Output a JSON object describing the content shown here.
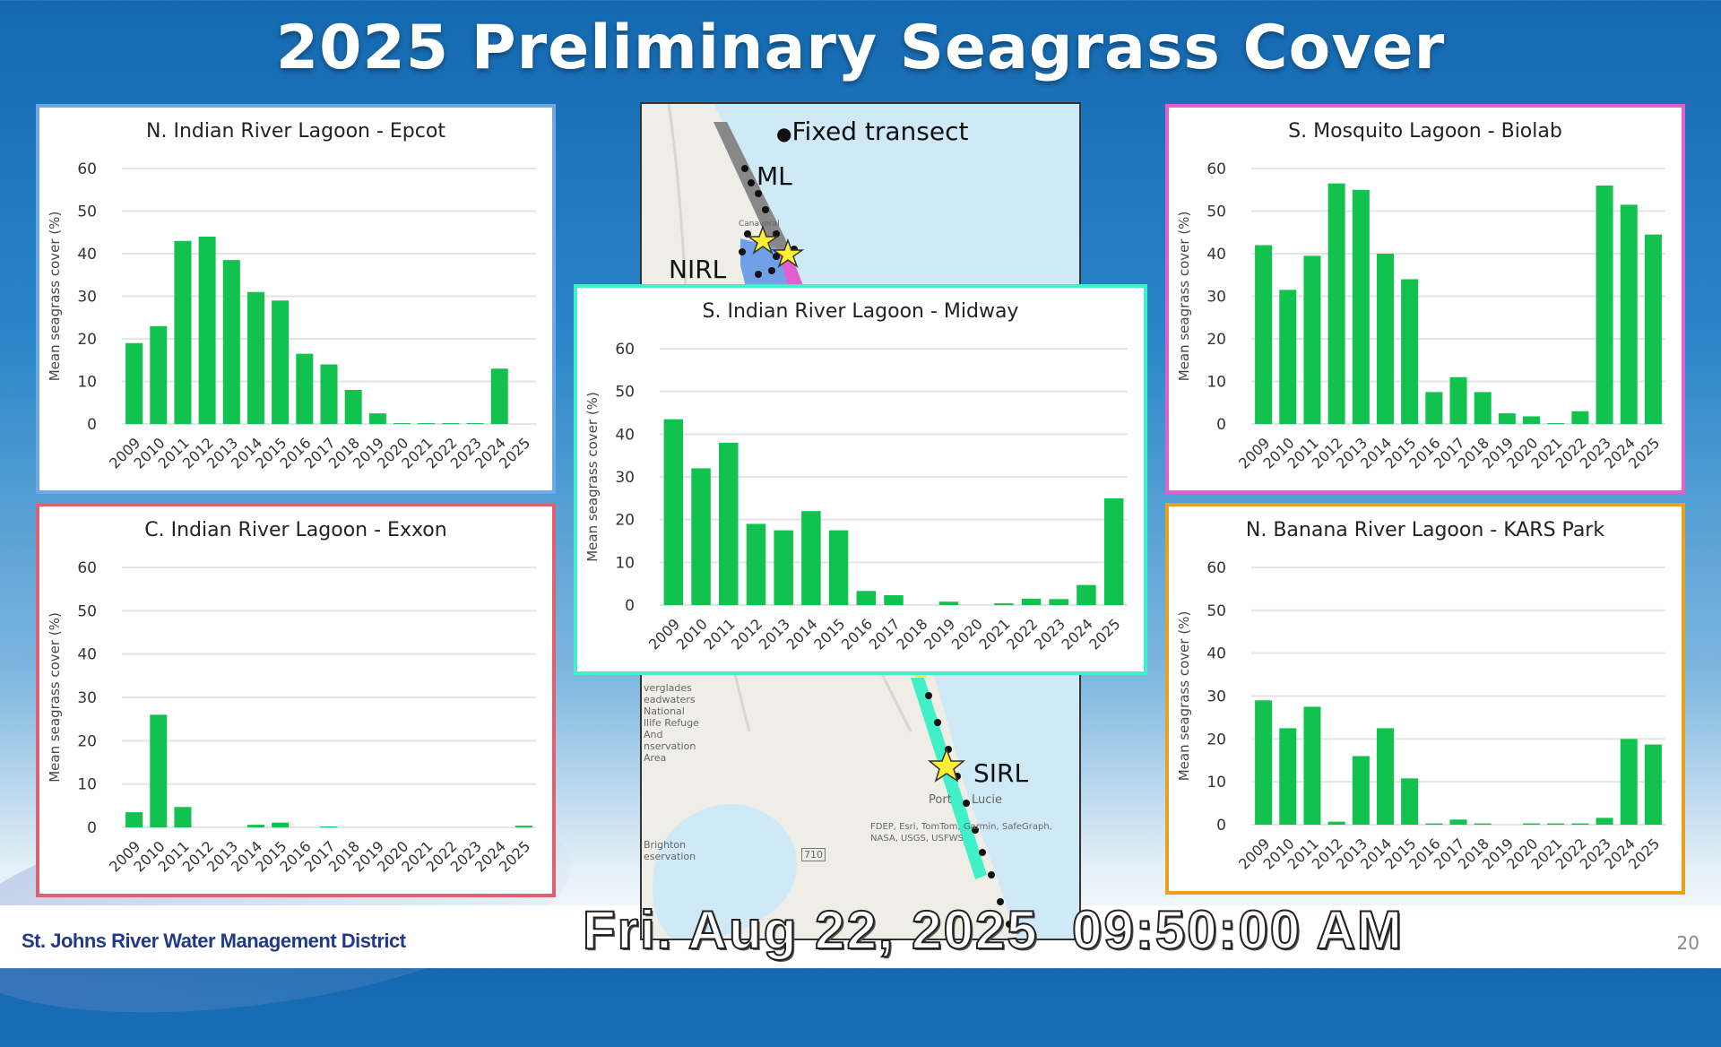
{
  "slide": {
    "title": "2025 Preliminary Seagrass Cover",
    "footer": "St. Johns River Water Management District",
    "page_number": "20",
    "timestamp": "Fri. Aug 22, 2025  09:50:00 AM"
  },
  "map": {
    "legend": "Fixed transect",
    "region_labels": {
      "ml": "ML",
      "nirl": "NIRL",
      "sirl": "SIRL"
    },
    "place_labels": {
      "port": "Port",
      "lucie": "Lucie",
      "refuge": "verglades\neadwaters\nNational\nllife Refuge\nAnd\nnservation\nArea",
      "brighton": "Brighton\neservation",
      "road": "710",
      "canaveral": "Canaveral"
    },
    "attribution": "FDEP, Esri, TomTom, Garmin, SafeGraph, NASA, USGS, USFWS",
    "colors": {
      "ocean": "#cfe9f7",
      "land": "#eeeee6",
      "ml": "#e060d0",
      "nirl": "#6fa0e8",
      "sirl": "#40f0c8",
      "star": "#ffee33"
    }
  },
  "chart_data": [
    {
      "type": "bar",
      "title": "N. Indian River Lagoon - Epcot",
      "ylabel": "Mean seagrass cover (%)",
      "categories": [
        "2009",
        "2010",
        "2011",
        "2012",
        "2013",
        "2014",
        "2015",
        "2016",
        "2017",
        "2018",
        "2019",
        "2020",
        "2021",
        "2022",
        "2023",
        "2024",
        "2025"
      ],
      "values": [
        19,
        23,
        43,
        44,
        38.5,
        31,
        29,
        16.5,
        14,
        8,
        2.5,
        0.2,
        0.2,
        0.2,
        0.2,
        13,
        null
      ],
      "ylim": [
        0,
        60
      ],
      "yticks": [
        "0",
        "10",
        "20",
        "30",
        "40",
        "50",
        "60"
      ],
      "grid": true,
      "bar_color": "#12c24e",
      "border_color": "#6fa8e8"
    },
    {
      "type": "bar",
      "title": "S. Mosquito Lagoon - Biolab",
      "ylabel": "Mean seagrass cover (%)",
      "categories": [
        "2009",
        "2010",
        "2011",
        "2012",
        "2013",
        "2014",
        "2015",
        "2016",
        "2017",
        "2018",
        "2019",
        "2020",
        "2021",
        "2022",
        "2023",
        "2024",
        "2025"
      ],
      "values": [
        42,
        31.5,
        39.5,
        56.5,
        55,
        40,
        34,
        7.5,
        11,
        7.5,
        2.5,
        1.8,
        0.2,
        3,
        56,
        51.5,
        44.5
      ],
      "ylim": [
        0,
        60
      ],
      "yticks": [
        "0",
        "10",
        "20",
        "30",
        "40",
        "50",
        "60"
      ],
      "grid": true,
      "bar_color": "#12c24e",
      "border_color": "#e060d0"
    },
    {
      "type": "bar",
      "title": "C. Indian River Lagoon - Exxon",
      "ylabel": "Mean seagrass cover (%)",
      "categories": [
        "2009",
        "2010",
        "2011",
        "2012",
        "2013",
        "2014",
        "2015",
        "2016",
        "2017",
        "2018",
        "2019",
        "2020",
        "2021",
        "2022",
        "2023",
        "2024",
        "2025"
      ],
      "values": [
        3.5,
        26,
        4.7,
        0,
        0,
        0.6,
        1.1,
        0,
        0.2,
        0,
        0,
        0,
        0,
        0,
        0,
        0,
        0.4
      ],
      "ylim": [
        0,
        60
      ],
      "yticks": [
        "0",
        "10",
        "20",
        "30",
        "40",
        "50",
        "60"
      ],
      "grid": true,
      "bar_color": "#12c24e",
      "border_color": "#e06070"
    },
    {
      "type": "bar",
      "title": "N. Banana River Lagoon - KARS Park",
      "ylabel": "Mean seagrass cover (%)",
      "categories": [
        "2009",
        "2010",
        "2011",
        "2012",
        "2013",
        "2014",
        "2015",
        "2016",
        "2017",
        "2018",
        "2019",
        "2020",
        "2021",
        "2022",
        "2023",
        "2024",
        "2025"
      ],
      "values": [
        29,
        22.5,
        27.5,
        0.7,
        16,
        22.5,
        10.8,
        0.3,
        1.2,
        0.3,
        0,
        0.3,
        0.3,
        0.3,
        1.6,
        20,
        18.7
      ],
      "ylim": [
        0,
        60
      ],
      "yticks": [
        "0",
        "10",
        "20",
        "30",
        "40",
        "50",
        "60"
      ],
      "grid": true,
      "bar_color": "#12c24e",
      "border_color": "#e8a020"
    },
    {
      "type": "bar",
      "title": "S. Indian River Lagoon - Midway",
      "ylabel": "Mean seagrass cover (%)",
      "categories": [
        "2009",
        "2010",
        "2011",
        "2012",
        "2013",
        "2014",
        "2015",
        "2016",
        "2017",
        "2018",
        "2019",
        "2020",
        "2021",
        "2022",
        "2023",
        "2024",
        "2025"
      ],
      "values": [
        43.5,
        32,
        38,
        19,
        17.5,
        22,
        17.5,
        3.3,
        2.3,
        0,
        0.8,
        0,
        0.4,
        1.5,
        1.4,
        4.7,
        25
      ],
      "ylim": [
        0,
        60
      ],
      "yticks": [
        "0",
        "10",
        "20",
        "30",
        "40",
        "50",
        "60"
      ],
      "grid": true,
      "bar_color": "#12c24e",
      "border_color": "#40f0c8"
    }
  ]
}
